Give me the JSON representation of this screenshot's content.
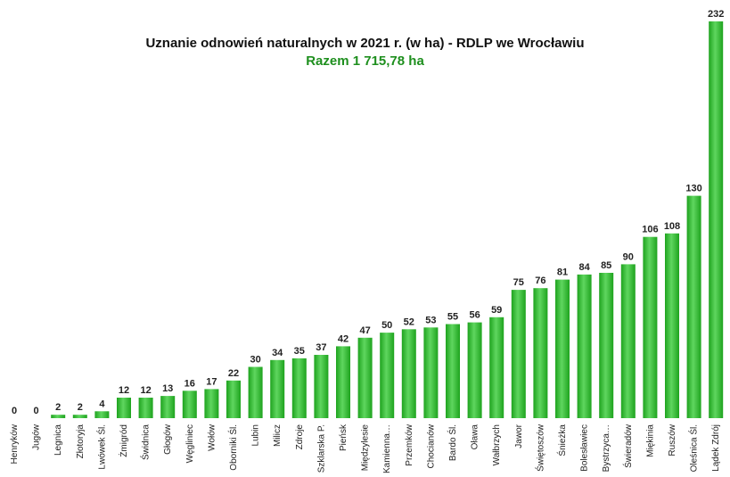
{
  "chart_data": {
    "type": "bar",
    "title": "Uznanie odnowień naturalnych w 2021 r. (w ha) - RDLP we Wrocławiu",
    "subtitle": "Razem 1 715,78 ha",
    "xlabel": "",
    "ylabel": "",
    "ylim": [
      0,
      232
    ],
    "grid": false,
    "legend": "none",
    "bar_color": "#1ea31e",
    "bar_color_light": "#5fd65f",
    "subtitle_color": "#1e8f1e",
    "categories": [
      "Henryków",
      "Jugów",
      "Legnica",
      "Złotoryja",
      "Lwówek Śl.",
      "Żmigród",
      "Świdnica",
      "Głogów",
      "Węgliniec",
      "Wołów",
      "Oborniki Śl.",
      "Lubin",
      "Milicz",
      "Zdroje",
      "Szklarska P.",
      "Pieńsk",
      "Międzylesie",
      "Kamienna…",
      "Przemków",
      "Chocianów",
      "Bardo Śl.",
      "Oława",
      "Wałbrzych",
      "Jawor",
      "Świętoszów",
      "Śnieżka",
      "Bolesławiec",
      "Bystrzyca…",
      "Świeradów",
      "Miękinia",
      "Ruszów",
      "Oleśnica Śl.",
      "Lądek Zdrój"
    ],
    "values": [
      0,
      0,
      2,
      2,
      4,
      12,
      12,
      13,
      16,
      17,
      22,
      30,
      34,
      35,
      37,
      42,
      47,
      50,
      52,
      53,
      55,
      56,
      59,
      75,
      76,
      81,
      84,
      85,
      90,
      106,
      108,
      130,
      232
    ],
    "value_labels": [
      "0",
      "0",
      "2",
      "2",
      "4",
      "12",
      "12",
      "13",
      "16",
      "17",
      "22",
      "30",
      "34",
      "35",
      "37",
      "42",
      "47",
      "50",
      "52",
      "53",
      "55",
      "56",
      "59",
      "75",
      "76",
      "81",
      "84",
      "85",
      "90",
      "106",
      "108",
      "130",
      "232"
    ]
  }
}
